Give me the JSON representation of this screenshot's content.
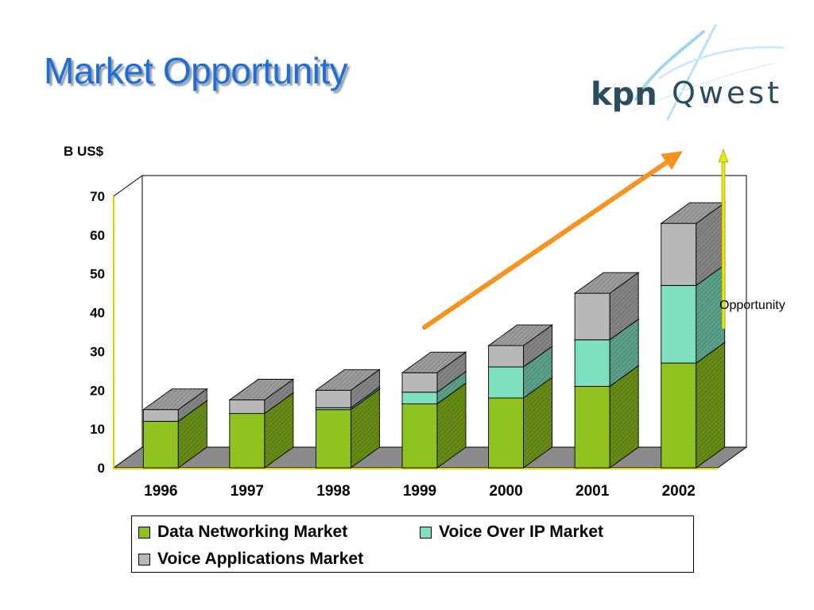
{
  "slide": {
    "title": "Market Opportunity",
    "logo_text": "kpnQwest"
  },
  "colors": {
    "title": "#1f6ed8",
    "data_networking": "#8fc21f",
    "voice_over_ip": "#7fe0c0",
    "voice_applications": "#b8b8b8",
    "growth_arrow": "#f7931e",
    "opportunity_bar": "#e8e800",
    "floor": "#8a8a8a"
  },
  "chart_data": {
    "type": "bar",
    "stacked": true,
    "three_d": true,
    "unit_label": "B US$",
    "categories": [
      "1996",
      "1997",
      "1998",
      "1999",
      "2000",
      "2001",
      "2002"
    ],
    "series": [
      {
        "name": "Data Networking Market",
        "values": [
          12,
          14,
          15,
          16.5,
          18,
          21,
          27
        ]
      },
      {
        "name": "Voice Over IP Market",
        "values": [
          0,
          0,
          0.5,
          3,
          8,
          12,
          20
        ]
      },
      {
        "name": "Voice Applications Market",
        "values": [
          3,
          3.5,
          4.5,
          5,
          5.5,
          12,
          16
        ]
      }
    ],
    "ylim": [
      0,
      70
    ],
    "yticks": [
      "0",
      "10",
      "20",
      "30",
      "40",
      "50",
      "60",
      "70"
    ],
    "grid": false,
    "legend_position": "bottom",
    "annotation": {
      "text": "Opportunity"
    }
  }
}
